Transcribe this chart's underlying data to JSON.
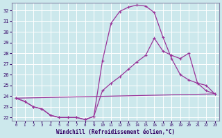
{
  "xlabel": "Windchill (Refroidissement éolien,°C)",
  "background_color": "#cce8ec",
  "grid_color": "#ffffff",
  "line_color": "#993399",
  "ylim": [
    21.7,
    32.7
  ],
  "xlim": [
    -0.5,
    23.5
  ],
  "yticks": [
    22,
    23,
    24,
    25,
    26,
    27,
    28,
    29,
    30,
    31,
    32
  ],
  "xticks": [
    0,
    1,
    2,
    3,
    4,
    5,
    6,
    7,
    8,
    9,
    10,
    11,
    12,
    13,
    14,
    15,
    16,
    17,
    18,
    19,
    20,
    21,
    22,
    23
  ],
  "series1_x": [
    0,
    1,
    2,
    3,
    4,
    5,
    6,
    7,
    8,
    9,
    10,
    11,
    12,
    13,
    14,
    15,
    16,
    17,
    18,
    19,
    20,
    21,
    22,
    23
  ],
  "series1_y": [
    23.8,
    23.5,
    23.0,
    22.8,
    22.2,
    22.0,
    22.0,
    22.0,
    21.8,
    22.1,
    27.3,
    30.8,
    31.9,
    32.3,
    32.5,
    32.4,
    31.8,
    29.5,
    27.5,
    26.0,
    25.5,
    25.2,
    24.5,
    24.2
  ],
  "series2_x": [
    0,
    1,
    2,
    3,
    4,
    5,
    6,
    7,
    8,
    9,
    10,
    11,
    12,
    13,
    14,
    15,
    16,
    17,
    18,
    19,
    20,
    21,
    22,
    23
  ],
  "series2_y": [
    23.8,
    23.5,
    23.0,
    22.8,
    22.2,
    22.0,
    22.0,
    22.0,
    21.8,
    22.1,
    24.5,
    25.2,
    25.8,
    26.5,
    27.2,
    27.8,
    29.4,
    28.2,
    27.8,
    27.5,
    28.0,
    25.2,
    25.0,
    24.2
  ],
  "series3_x": [
    0,
    23
  ],
  "series3_y": [
    23.8,
    24.2
  ]
}
